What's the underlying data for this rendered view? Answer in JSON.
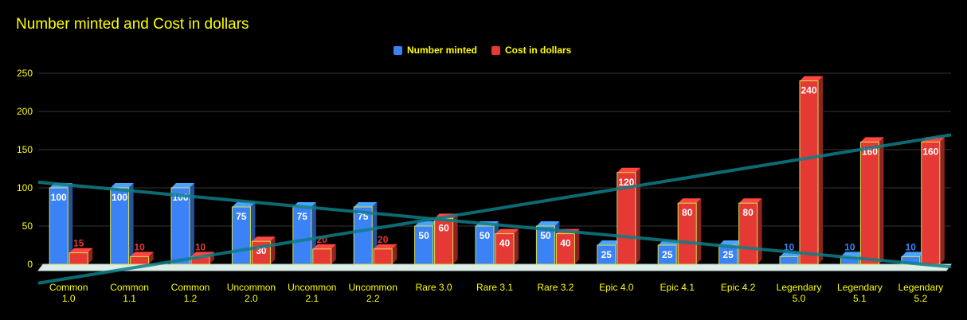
{
  "chart_data": {
    "type": "bar",
    "title": "Number minted and Cost in dollars",
    "categories": [
      [
        "Common",
        "1.0"
      ],
      [
        "Common",
        "1.1"
      ],
      [
        "Common",
        "1.2"
      ],
      [
        "Uncommon",
        "2.0"
      ],
      [
        "Uncommon",
        "2.1"
      ],
      [
        "Uncommon",
        "2.2"
      ],
      [
        "Rare 3.0"
      ],
      [
        "Rare 3.1"
      ],
      [
        "Rare 3.2"
      ],
      [
        "Epic 4.0"
      ],
      [
        "Epic 4.1"
      ],
      [
        "Epic 4.2"
      ],
      [
        "Legendary",
        "5.0"
      ],
      [
        "Legendary",
        "5.1"
      ],
      [
        "Legendary",
        "5.2"
      ]
    ],
    "series": [
      {
        "name": "Number minted",
        "color": "#3b82f6",
        "values": [
          100,
          100,
          100,
          75,
          75,
          75,
          50,
          50,
          50,
          25,
          25,
          25,
          10,
          10,
          10
        ]
      },
      {
        "name": "Cost in dollars",
        "color": "#e53935",
        "values": [
          15,
          10,
          10,
          30,
          20,
          20,
          60,
          40,
          40,
          120,
          80,
          80,
          240,
          160,
          160
        ]
      }
    ],
    "ylim": [
      0,
      250
    ],
    "yticks": [
      0,
      50,
      100,
      150,
      200,
      250
    ],
    "grid": true,
    "legend_position": "top",
    "style": "3d-bar",
    "trendlines": [
      {
        "series": "Number minted",
        "color": "#0e7c86"
      },
      {
        "series": "Cost in dollars",
        "color": "#0e7c86"
      }
    ]
  }
}
